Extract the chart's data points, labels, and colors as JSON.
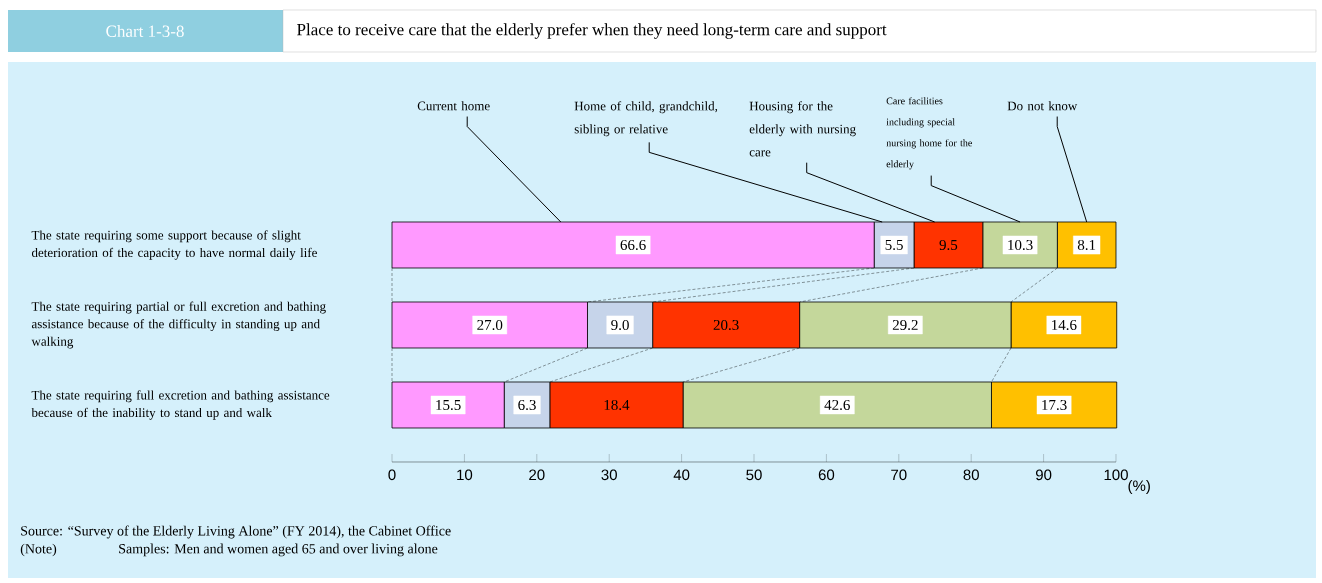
{
  "chart_data": {
    "type": "bar",
    "orientation": "horizontal",
    "stacked": true,
    "title": "Chart 1-3-8",
    "subtitle": "Place to receive care that the elderly prefer when they need long-term care and support",
    "categories": [
      "The state requiring some support because of slight deterioration of the capacity to have normal daily life",
      "The state requiring partial or full excretion and bathing assistance because of the difficulty in standing up and walking",
      "The state requiring full excretion and bathing assistance because of the inability to stand up and walk"
    ],
    "series": [
      {
        "name": "Current home",
        "color": "#ff99ff",
        "values": [
          66.6,
          27.0,
          15.5
        ],
        "value_labels": [
          "66.6",
          "27.0",
          "15.5"
        ]
      },
      {
        "name": "Home of child, grandchild, sibling or relative",
        "color": "#c6d4ea",
        "values": [
          5.5,
          9.0,
          6.3
        ],
        "value_labels": [
          "5.5",
          "9.0",
          "6.3"
        ]
      },
      {
        "name": "Housing for the elderly with nursing care",
        "color": "#ff3300",
        "values": [
          9.5,
          20.3,
          18.4
        ],
        "value_labels": [
          "9.5",
          "20.3",
          "18.4"
        ]
      },
      {
        "name": "Care facilities including special nursing home for the elderly",
        "color": "#c4d79b",
        "values": [
          10.3,
          29.2,
          42.6
        ],
        "value_labels": [
          "10.3",
          "29.2",
          "42.6"
        ]
      },
      {
        "name": "Do not know",
        "color": "#ffc000",
        "values": [
          8.1,
          14.6,
          17.3
        ],
        "value_labels": [
          "8.1",
          "14.6",
          "17.3"
        ]
      }
    ],
    "xlim": [
      0,
      100
    ],
    "xticks": [
      0,
      10,
      20,
      30,
      40,
      50,
      60,
      70,
      80,
      90,
      100
    ],
    "xlabel": "(%)",
    "annotations": [
      "Source: “Survey of the Elderly Living Alone” (FY 2014), the Cabinet Office",
      "(Note)",
      "Samples: Men and women aged 65 and over living alone"
    ]
  }
}
